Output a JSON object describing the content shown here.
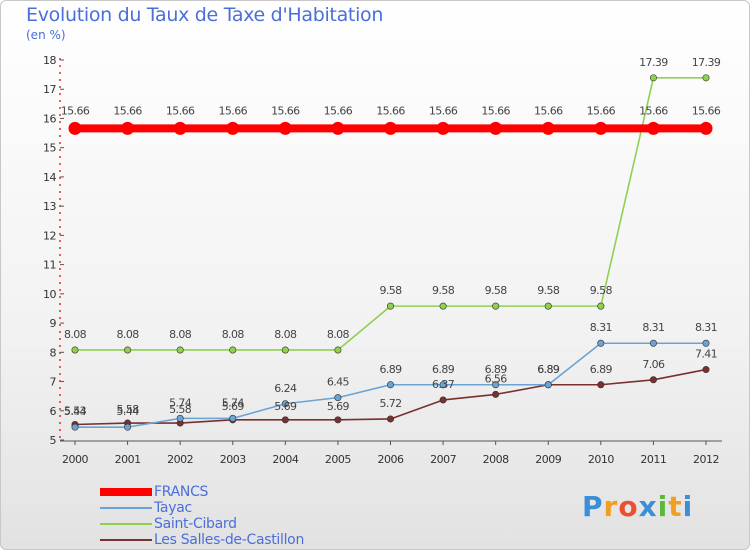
{
  "chart_data": {
    "type": "line",
    "title": "Evolution du Taux de Taxe d'Habitation",
    "subtitle": "(en %)",
    "xlabel": "",
    "ylabel": "",
    "x": [
      2000,
      2001,
      2002,
      2003,
      2004,
      2005,
      2006,
      2007,
      2008,
      2009,
      2010,
      2011,
      2012
    ],
    "ylim": [
      5,
      18
    ],
    "yticks": [
      5,
      6,
      7,
      8,
      9,
      10,
      11,
      12,
      13,
      14,
      15,
      16,
      17,
      18
    ],
    "legend_position": "bottom-left",
    "series": [
      {
        "name": "FRANCS",
        "color": "#ff0000",
        "values": [
          15.66,
          15.66,
          15.66,
          15.66,
          15.66,
          15.66,
          15.66,
          15.66,
          15.66,
          15.66,
          15.66,
          15.66,
          15.66
        ],
        "labels": [
          "15.66",
          "15.66",
          "15.66",
          "15.66",
          "15.66",
          "15.66",
          "15.66",
          "15.66",
          "15.66",
          "15.66",
          "15.66",
          "15.66",
          "15.66"
        ]
      },
      {
        "name": "Tayac",
        "color": "#6aa3d5",
        "values": [
          5.44,
          5.44,
          5.74,
          5.74,
          6.24,
          6.45,
          6.89,
          6.89,
          6.89,
          6.89,
          8.31,
          8.31,
          8.31
        ],
        "labels": [
          "5.44",
          "5.44",
          "5.74",
          "5.74",
          "6.24",
          "6.45",
          "6.89",
          "6.89",
          "6.89",
          "6.89",
          "8.31",
          "8.31",
          "8.31"
        ]
      },
      {
        "name": "Saint-Cibard",
        "color": "#8fd14f",
        "values": [
          8.08,
          8.08,
          8.08,
          8.08,
          8.08,
          8.08,
          9.58,
          9.58,
          9.58,
          9.58,
          9.58,
          17.39,
          17.39
        ],
        "labels": [
          "8.08",
          "8.08",
          "8.08",
          "8.08",
          "8.08",
          "8.08",
          "9.58",
          "9.58",
          "9.58",
          "9.58",
          "9.58",
          "17.39",
          "17.39"
        ]
      },
      {
        "name": "Les Salles-de-Castillon",
        "color": "#7a3030",
        "values": [
          5.53,
          5.58,
          5.58,
          5.69,
          5.69,
          5.69,
          5.72,
          6.37,
          6.56,
          6.89,
          6.89,
          7.06,
          7.41
        ],
        "labels": [
          "5.53",
          "5.58",
          "5.58",
          "5.69",
          "5.69",
          "5.69",
          "5.72",
          "6.37",
          "6.56",
          "6.89",
          "6.89",
          "7.06",
          "7.41"
        ]
      }
    ]
  },
  "logo": {
    "letters": [
      "P",
      "r",
      "o",
      "x",
      "i",
      "t",
      "i"
    ],
    "colors": [
      "#3a8fd8",
      "#f0a020",
      "#e85030",
      "#3a8fd8",
      "#5cb83a",
      "#f0a020",
      "#3a8fd8"
    ]
  }
}
